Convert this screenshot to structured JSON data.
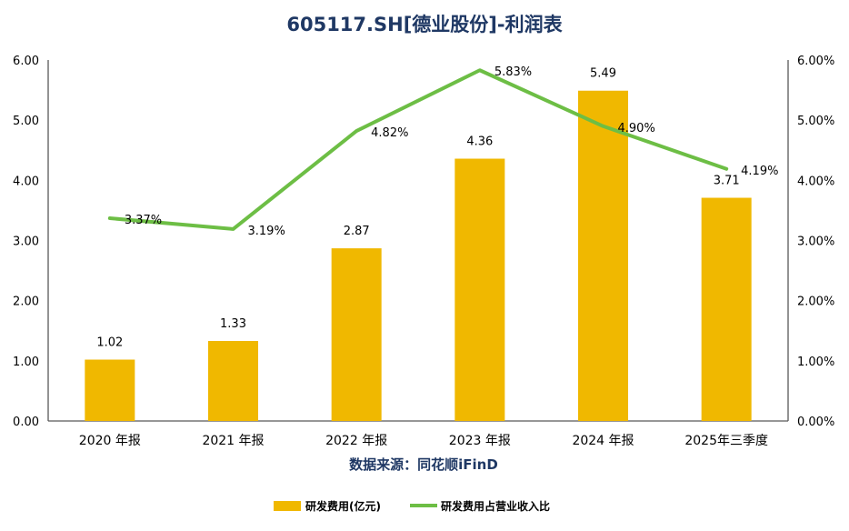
{
  "chart_data": {
    "type": "bar",
    "title": "605117.SH[德业股份]-利润表",
    "source": "数据来源：同花顺iFinD",
    "categories": [
      "2020 年报",
      "2021 年报",
      "2022 年报",
      "2023 年报",
      "2024 年报",
      "2025年三季度"
    ],
    "series": [
      {
        "name": "研发费用(亿元)",
        "type": "bar",
        "axis": "left",
        "color": "#F0B800",
        "values": [
          1.02,
          1.33,
          2.87,
          4.36,
          5.49,
          3.71
        ],
        "labels": [
          "1.02",
          "1.33",
          "2.87",
          "4.36",
          "5.49",
          "3.71"
        ]
      },
      {
        "name": "研发费用占营业收入比",
        "type": "line",
        "axis": "right",
        "color": "#6DBE45",
        "values": [
          3.37,
          3.19,
          4.82,
          5.83,
          4.9,
          4.19
        ],
        "labels": [
          "3.37%",
          "3.19%",
          "4.82%",
          "5.83%",
          "4.90%",
          "4.19%"
        ]
      }
    ],
    "y_left": {
      "min": 0,
      "max": 6,
      "step": 1,
      "ticks": [
        "0.00",
        "1.00",
        "2.00",
        "3.00",
        "4.00",
        "5.00",
        "6.00"
      ]
    },
    "y_right": {
      "min": 0,
      "max": 6,
      "step": 1,
      "ticks": [
        "0.00%",
        "1.00%",
        "2.00%",
        "3.00%",
        "4.00%",
        "5.00%",
        "6.00%"
      ]
    },
    "grid": false,
    "legend_position": "bottom-center"
  }
}
